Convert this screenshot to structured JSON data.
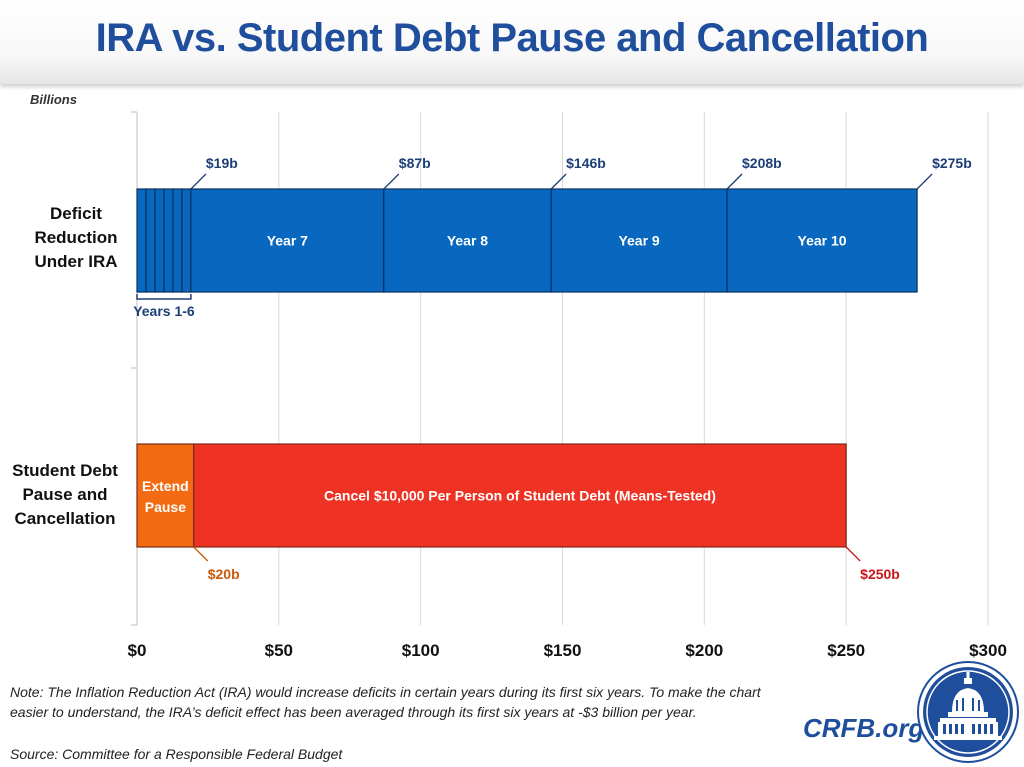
{
  "title": "IRA vs. Student Debt Pause and Cancellation",
  "units_label": "Billions",
  "colors": {
    "title": "#1f4e9c",
    "ira_bar": "#0868c0",
    "ira_text": "#1c3f77",
    "pause_bar": "#f26b12",
    "pause_text": "#c95a08",
    "cancel_bar": "#ee3224",
    "cancel_text": "#c8161d"
  },
  "chart_data": {
    "type": "bar",
    "orientation": "horizontal",
    "stacked": true,
    "title": "IRA vs. Student Debt Pause and Cancellation",
    "xlabel": "Billions",
    "xlim": [
      0,
      300
    ],
    "x_ticks": [
      0,
      50,
      100,
      150,
      200,
      250,
      300
    ],
    "x_tick_labels": [
      "$0",
      "$50",
      "$100",
      "$150",
      "$200",
      "$250",
      "$300"
    ],
    "categories": [
      "Deficit Reduction Under IRA",
      "Student Debt Pause and Cancellation"
    ],
    "category_lines": [
      [
        "Deficit",
        "Reduction",
        "Under IRA"
      ],
      [
        "Student Debt",
        "Pause and",
        "Cancellation"
      ]
    ],
    "series": [
      {
        "category": "Deficit Reduction Under IRA",
        "segments": [
          {
            "name": "Year 1",
            "value": 3.17
          },
          {
            "name": "Year 2",
            "value": 3.17
          },
          {
            "name": "Year 3",
            "value": 3.17
          },
          {
            "name": "Year 4",
            "value": 3.17
          },
          {
            "name": "Year 5",
            "value": 3.16
          },
          {
            "name": "Year 6",
            "value": 3.16
          },
          {
            "name": "Year 7",
            "value": 68,
            "label": "Year 7"
          },
          {
            "name": "Year 8",
            "value": 59,
            "label": "Year 8"
          },
          {
            "name": "Year 9",
            "value": 62,
            "label": "Year 9"
          },
          {
            "name": "Year 10",
            "value": 67,
            "label": "Year 10"
          }
        ],
        "group_label": "Years 1-6",
        "cumulative_labels": [
          {
            "value": 19,
            "label": "$19b"
          },
          {
            "value": 87,
            "label": "$87b"
          },
          {
            "value": 146,
            "label": "$146b"
          },
          {
            "value": 208,
            "label": "$208b"
          },
          {
            "value": 275,
            "label": "$275b"
          }
        ]
      },
      {
        "category": "Student Debt Pause and Cancellation",
        "segments": [
          {
            "name": "Extend Pause",
            "value": 20,
            "label_lines": [
              "Extend",
              "Pause"
            ]
          },
          {
            "name": "Cancel $10,000 Per Person of Student Debt (Means-Tested)",
            "value": 230,
            "label": "Cancel $10,000 Per Person of Student Debt (Means-Tested)"
          }
        ],
        "cumulative_labels": [
          {
            "value": 20,
            "label": "$20b"
          },
          {
            "value": 250,
            "label": "$250b"
          }
        ]
      }
    ]
  },
  "footer": {
    "note": "Note: The Inflation Reduction Act (IRA) would increase deficits in certain years during its first six years. To make the chart easier to understand, the IRA’s deficit effect has been averaged through its first six years at -$3 billion per year.",
    "source": "Source: Committee for a Responsible Federal Budget",
    "brand": "CRFB.org"
  }
}
